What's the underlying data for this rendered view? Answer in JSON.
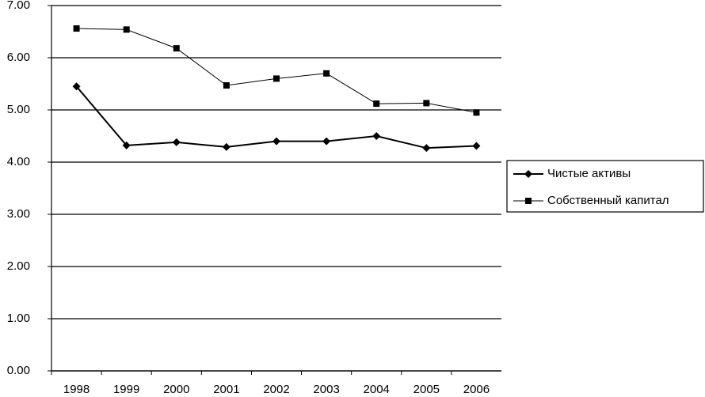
{
  "chart_data": {
    "type": "line",
    "categories": [
      "1998",
      "1999",
      "2000",
      "2001",
      "2002",
      "2003",
      "2004",
      "2005",
      "2006"
    ],
    "series": [
      {
        "name": "Чистые активы",
        "color": "#000000",
        "marker": "diamond",
        "values": [
          5.45,
          4.32,
          4.38,
          4.29,
          4.4,
          4.4,
          4.5,
          4.27,
          4.31
        ]
      },
      {
        "name": "Собственный капитал",
        "color": "#000000",
        "marker": "square",
        "values": [
          6.56,
          6.54,
          6.18,
          5.47,
          5.6,
          5.7,
          5.12,
          5.13,
          4.95
        ]
      }
    ],
    "ylim": [
      0,
      7
    ],
    "yticks": [
      {
        "value": 0,
        "label": "0.00"
      },
      {
        "value": 1,
        "label": "1.00"
      },
      {
        "value": 2,
        "label": "2.00"
      },
      {
        "value": 3,
        "label": "3.00"
      },
      {
        "value": 4,
        "label": "4.00"
      },
      {
        "value": 5,
        "label": "5.00"
      },
      {
        "value": 6,
        "label": "6.00"
      },
      {
        "value": 7,
        "label": "7.00"
      }
    ],
    "grid": true,
    "legend": "right"
  }
}
